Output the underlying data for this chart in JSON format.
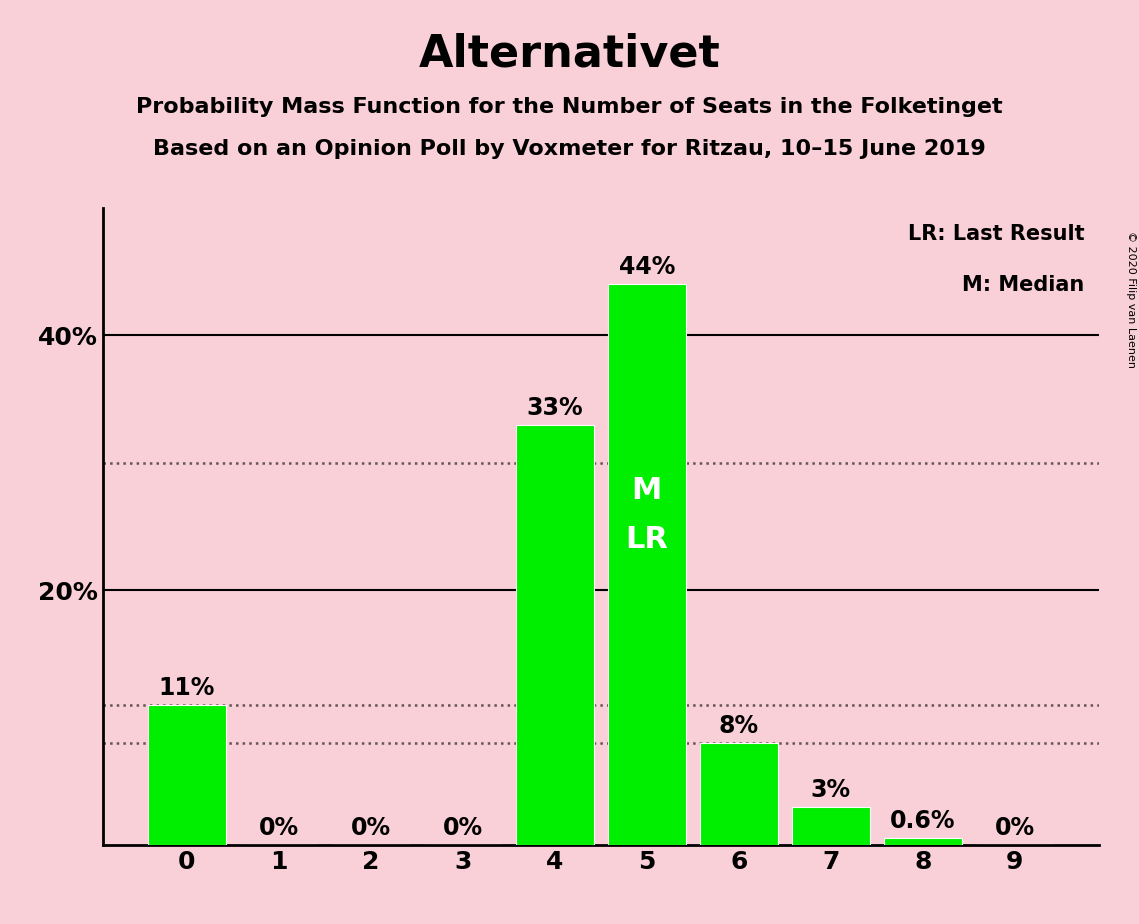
{
  "title": "Alternativet",
  "subtitle1": "Probability Mass Function for the Number of Seats in the Folketinget",
  "subtitle2": "Based on an Opinion Poll by Voxmeter for Ritzau, 10–15 June 2019",
  "categories": [
    0,
    1,
    2,
    3,
    4,
    5,
    6,
    7,
    8,
    9
  ],
  "values": [
    0.11,
    0.0,
    0.0,
    0.0,
    0.33,
    0.44,
    0.08,
    0.03,
    0.006,
    0.0
  ],
  "labels": [
    "11%",
    "0%",
    "0%",
    "0%",
    "33%",
    "44%",
    "8%",
    "3%",
    "0.6%",
    "0%"
  ],
  "bar_color": "#00ee00",
  "background_color": "#f9d0d8",
  "median_bar": 5,
  "median_label": "M",
  "lr_label": "LR",
  "legend_lr": "LR: Last Result",
  "legend_m": "M: Median",
  "dotted_line_y": [
    0.11,
    0.08,
    0.3
  ],
  "solid_line_y": [
    0.2,
    0.4
  ],
  "ylim": [
    0,
    0.5
  ],
  "yticks": [
    0.2,
    0.4
  ],
  "ytick_labels": [
    "20%",
    "40%"
  ],
  "copyright": "© 2020 Filip van Laenen",
  "title_fontsize": 32,
  "subtitle_fontsize": 16,
  "label_fontsize": 17,
  "axis_fontsize": 18,
  "inner_label_fontsize": 22
}
